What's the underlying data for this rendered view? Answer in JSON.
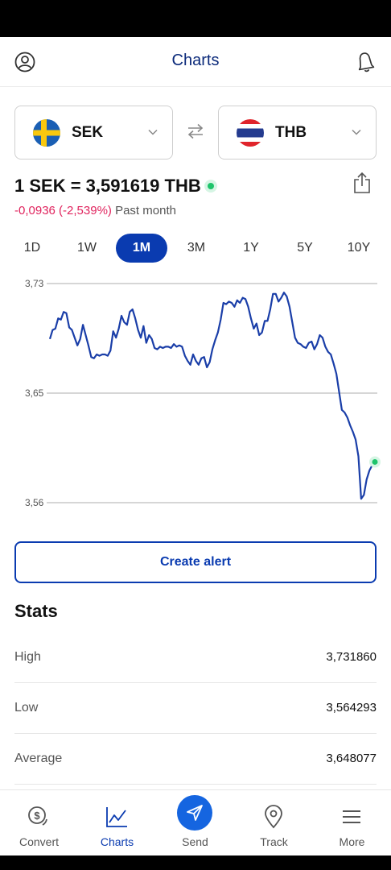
{
  "header": {
    "title": "Charts",
    "profile_icon": "profile-icon",
    "bell_icon": "bell-icon"
  },
  "from_currency": {
    "code": "SEK",
    "flag": "sweden-flag-icon"
  },
  "to_currency": {
    "code": "THB",
    "flag": "thailand-flag-icon"
  },
  "rate": {
    "text": "1 SEK = 3,591619 THB",
    "change_value": "-0,0936 (-2,539%)",
    "period_label": "Past month"
  },
  "ranges": [
    "1D",
    "1W",
    "1M",
    "3M",
    "1Y",
    "5Y",
    "10Y"
  ],
  "active_range": "1M",
  "chart_data": {
    "type": "line",
    "y_ticks": [
      "3,73",
      "3,65",
      "3,56"
    ],
    "ylim": [
      3.56,
      3.73
    ],
    "grid": true,
    "line_color": "#1a3ea8",
    "marker_color": "#1ec46b",
    "series": [
      {
        "values": [
          3.687,
          3.694,
          3.695,
          3.703,
          3.702,
          3.708,
          3.707,
          3.696,
          3.694,
          3.688,
          3.682,
          3.687,
          3.698,
          3.69,
          3.682,
          3.673,
          3.672,
          3.675,
          3.674,
          3.675,
          3.675,
          3.674,
          3.678,
          3.693,
          3.688,
          3.695,
          3.705,
          3.7,
          3.698,
          3.708,
          3.71,
          3.703,
          3.694,
          3.688,
          3.697,
          3.684,
          3.69,
          3.687,
          3.68,
          3.679,
          3.681,
          3.68,
          3.681,
          3.681,
          3.68,
          3.683,
          3.681,
          3.682,
          3.681,
          3.674,
          3.67,
          3.667,
          3.675,
          3.67,
          3.667,
          3.672,
          3.673,
          3.665,
          3.669,
          3.679,
          3.686,
          3.692,
          3.702,
          3.715,
          3.714,
          3.716,
          3.715,
          3.712,
          3.717,
          3.715,
          3.719,
          3.718,
          3.712,
          3.703,
          3.695,
          3.699,
          3.69,
          3.692,
          3.701,
          3.701,
          3.71,
          3.722,
          3.722,
          3.716,
          3.719,
          3.723,
          3.72,
          3.712,
          3.7,
          3.688,
          3.684,
          3.683,
          3.681,
          3.68,
          3.684,
          3.685,
          3.679,
          3.683,
          3.69,
          3.688,
          3.681,
          3.677,
          3.675,
          3.668,
          3.66,
          3.646,
          3.632,
          3.63,
          3.626,
          3.62,
          3.615,
          3.609,
          3.596,
          3.563,
          3.566,
          3.578,
          3.585,
          3.589,
          3.5916
        ]
      }
    ]
  },
  "alert_button": {
    "label": "Create alert"
  },
  "stats": {
    "title": "Stats",
    "rows": [
      {
        "label": "High",
        "value": "3,731860"
      },
      {
        "label": "Low",
        "value": "3,564293"
      },
      {
        "label": "Average",
        "value": "3,648077"
      }
    ]
  },
  "tabs": [
    {
      "label": "Convert",
      "icon": "convert-icon"
    },
    {
      "label": "Charts",
      "icon": "charts-icon"
    },
    {
      "label": "Send",
      "icon": "send-icon"
    },
    {
      "label": "Track",
      "icon": "location-pin-icon"
    },
    {
      "label": "More",
      "icon": "menu-icon"
    }
  ],
  "active_tab": "Charts",
  "colors": {
    "brand": "#0a3bb0",
    "negative": "#e0245e",
    "positive_dot": "#1ec46b",
    "send_button": "#1565e0"
  }
}
